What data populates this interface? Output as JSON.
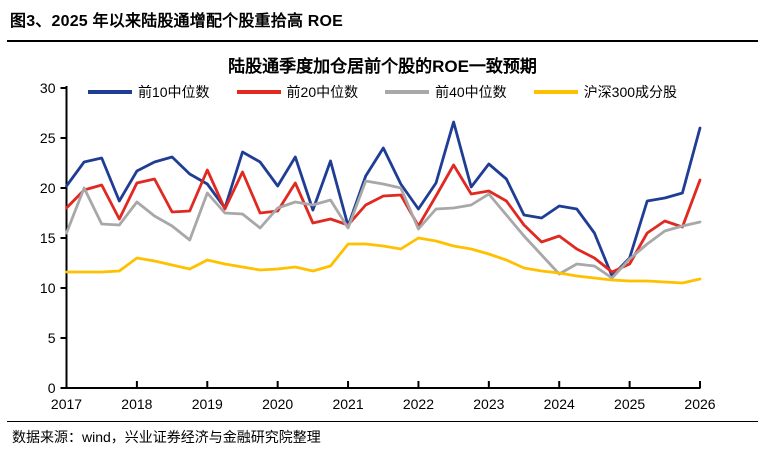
{
  "header": {
    "title": "图3、2025 年以来陆股通增配个股重拾高 ROE"
  },
  "footer": {
    "source": "数据来源：wind，兴业证券经济与金融研究院整理"
  },
  "chart_data": {
    "type": "line",
    "title": "陆股通季度加仓居前个股的ROE一致预期",
    "x_unit": "quarterly, 2017Q1 - 2026Q1",
    "x_ticks": [
      "2017",
      "2018",
      "2019",
      "2020",
      "2021",
      "2022",
      "2023",
      "2024",
      "2025",
      "2026"
    ],
    "y_ticks": [
      0,
      5,
      10,
      15,
      20,
      25,
      30
    ],
    "ylim": [
      0,
      30
    ],
    "grid": false,
    "legend_position": "top",
    "axis_color": "#000000",
    "series": [
      {
        "name": "前10中位数",
        "color": "#1F3D94",
        "values": [
          20.2,
          22.6,
          23.0,
          18.7,
          21.7,
          22.6,
          23.1,
          21.4,
          20.4,
          18.0,
          23.6,
          22.6,
          20.2,
          23.1,
          17.8,
          22.7,
          16.2,
          21.2,
          24.0,
          20.4,
          17.9,
          20.5,
          26.6,
          20.1,
          22.4,
          20.9,
          17.3,
          17.0,
          18.2,
          17.9,
          15.5,
          11.2,
          13.0,
          18.7,
          19.0,
          19.5,
          26.0
        ]
      },
      {
        "name": "前20中位数",
        "color": "#E02920",
        "values": [
          18.0,
          19.8,
          20.3,
          16.9,
          20.5,
          20.9,
          17.6,
          17.7,
          21.8,
          17.9,
          21.6,
          17.5,
          17.7,
          20.5,
          16.5,
          16.9,
          16.3,
          18.3,
          19.2,
          19.3,
          16.2,
          19.2,
          22.3,
          19.4,
          19.7,
          18.7,
          16.3,
          14.6,
          15.2,
          13.9,
          13.0,
          11.6,
          12.4,
          15.5,
          16.7,
          16.1,
          20.8
        ]
      },
      {
        "name": "前40中位数",
        "color": "#A8A8A8",
        "values": [
          15.5,
          20.0,
          16.4,
          16.3,
          18.6,
          17.2,
          16.2,
          14.8,
          19.5,
          17.5,
          17.4,
          16.0,
          18.0,
          18.6,
          18.3,
          18.8,
          16.0,
          20.7,
          20.4,
          20.0,
          15.9,
          17.9,
          18.0,
          18.3,
          19.4,
          17.3,
          15.2,
          13.3,
          11.4,
          12.4,
          12.2,
          11.0,
          12.9,
          14.4,
          15.7,
          16.2,
          16.6
        ]
      },
      {
        "name": "沪深300成分股",
        "color": "#FFC000",
        "values": [
          11.6,
          11.6,
          11.6,
          11.7,
          13.0,
          12.7,
          12.3,
          11.9,
          12.8,
          12.4,
          12.1,
          11.8,
          11.9,
          12.1,
          11.7,
          12.2,
          14.4,
          14.4,
          14.2,
          13.9,
          15.0,
          14.7,
          14.2,
          13.9,
          13.4,
          12.8,
          12.0,
          11.7,
          11.5,
          11.2,
          11.0,
          10.8,
          10.7,
          10.7,
          10.6,
          10.5,
          10.9
        ]
      }
    ]
  }
}
